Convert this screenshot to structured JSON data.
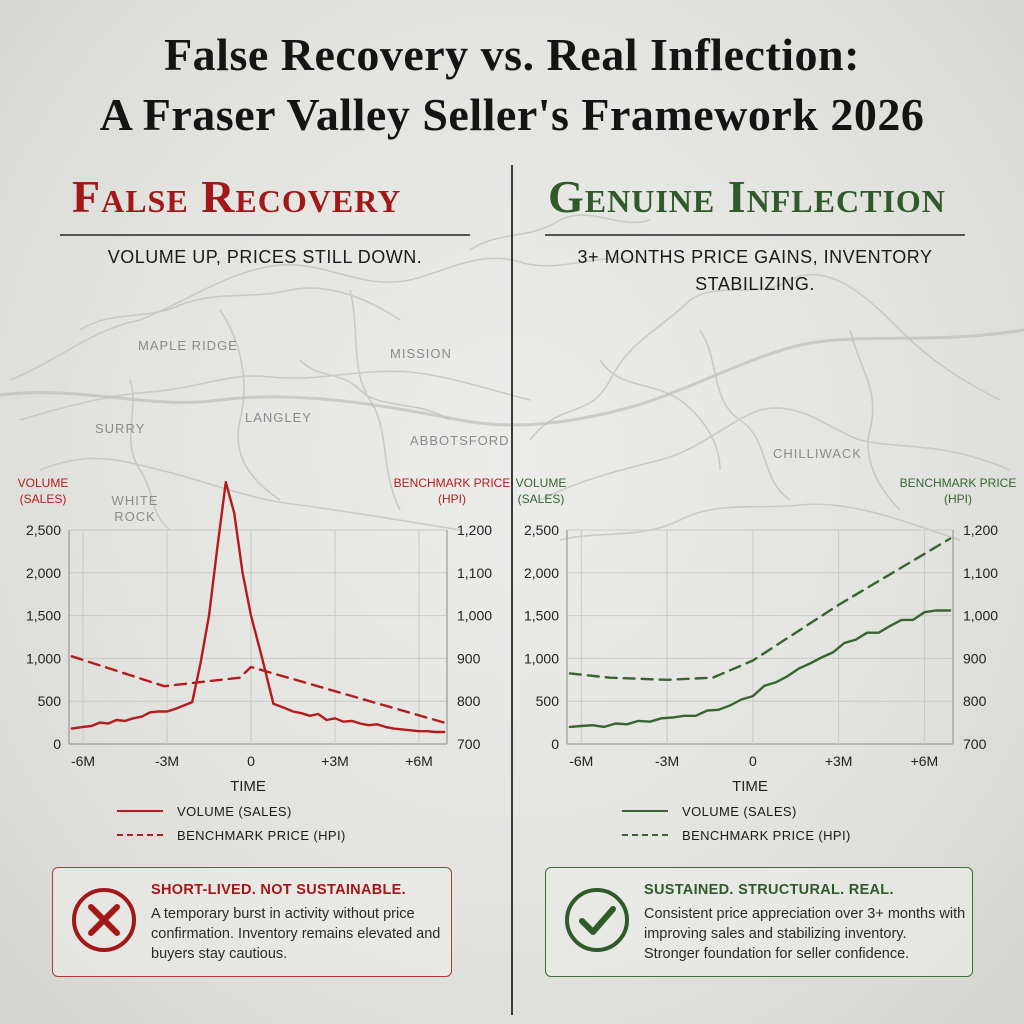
{
  "title": {
    "line1": "False Recovery vs. Real Inflection:",
    "line2": "A Fraser Valley Seller's Framework 2026"
  },
  "colors": {
    "red": "#b41c1c",
    "green": "#36652f",
    "grid": "#c9c9c6",
    "text": "#1a1a1a"
  },
  "map_labels": {
    "maple_ridge": "MAPLE RIDGE",
    "mission": "MISSION",
    "surry": "SURRY",
    "langley": "LANGLEY",
    "abbotsford": "ABBOTSFORD",
    "white_rock": "WHITE ROCK",
    "chilliwack": "CHILLIWACK"
  },
  "left": {
    "heading": "False Recovery",
    "subtitle": "VOLUME UP, PRICES STILL DOWN.",
    "legend": {
      "volume": "VOLUME (SALES)",
      "price": "BENCHMARK PRICE (HPI)"
    },
    "verdict": {
      "head": "SHORT-LIVED. NOT SUSTAINABLE.",
      "body": "A temporary burst in activity without price confirmation. Inventory remains elevated and buyers stay cautious.",
      "icon": "x-circle-icon"
    }
  },
  "right": {
    "heading": "Genuine Inflection",
    "subtitle": "3+ MONTHS PRICE GAINS, INVENTORY STABILIZING.",
    "legend": {
      "volume": "VOLUME (SALES)",
      "price": "BENCHMARK PRICE (HPI)"
    },
    "verdict": {
      "head": "SUSTAINED. STRUCTURAL. REAL.",
      "body": "Consistent price appreciation over 3+ months with improving sales and stabilizing inventory. Stronger foundation for seller confidence.",
      "icon": "check-circle-icon"
    }
  },
  "chart_data": [
    {
      "type": "line",
      "title": "False Recovery",
      "xlabel": "TIME",
      "ylabel": "VOLUME (SALES)",
      "ylabel_right": "BENCHMARK PRICE (HPI)",
      "x_ticks": [
        "-6M",
        "-3M",
        "0",
        "+3M",
        "+6M"
      ],
      "xlim": [
        -6.5,
        7
      ],
      "ylim": [
        0,
        2500
      ],
      "y_ticks": [
        0,
        500,
        1000,
        1500,
        2000,
        2500
      ],
      "ylim_right": [
        700,
        1200
      ],
      "y_ticks_right": [
        700,
        800,
        900,
        1000,
        1100,
        1200
      ],
      "grid": true,
      "color": "#b41c1c",
      "series": [
        {
          "name": "VOLUME (SALES)",
          "axis": "left",
          "style": "solid",
          "x": [
            -6.4,
            -6,
            -5.7,
            -5.4,
            -5.1,
            -4.8,
            -4.5,
            -4.2,
            -3.9,
            -3.6,
            -3.3,
            -3,
            -2.7,
            -2.4,
            -2.1,
            -1.8,
            -1.5,
            -1.2,
            -0.9,
            -0.6,
            -0.3,
            0,
            0.4,
            0.8,
            1.2,
            1.5,
            1.8,
            2.1,
            2.4,
            2.7,
            3,
            3.3,
            3.6,
            3.9,
            4.2,
            4.5,
            4.8,
            5.1,
            5.4,
            5.7,
            6,
            6.3,
            6.6,
            6.9
          ],
          "values": [
            180,
            200,
            210,
            250,
            240,
            280,
            270,
            300,
            320,
            370,
            380,
            380,
            410,
            450,
            490,
            950,
            1500,
            2300,
            3060,
            2700,
            2000,
            1500,
            1000,
            470,
            420,
            380,
            360,
            330,
            350,
            280,
            300,
            260,
            270,
            240,
            220,
            230,
            200,
            180,
            170,
            160,
            150,
            150,
            140,
            140
          ]
        },
        {
          "name": "BENCHMARK PRICE (HPI)",
          "axis": "right",
          "style": "dashed",
          "x": [
            -6.4,
            -3.1,
            -0.4,
            0,
            6.9
          ],
          "values": [
            905,
            835,
            855,
            880,
            750
          ]
        }
      ]
    },
    {
      "type": "line",
      "title": "Genuine Inflection",
      "xlabel": "TIME",
      "ylabel": "VOLUME (SALES)",
      "ylabel_right": "BENCHMARK PRICE (HPI)",
      "x_ticks": [
        "-6M",
        "-3M",
        "0",
        "+3M",
        "+6M"
      ],
      "xlim": [
        -6.5,
        7
      ],
      "ylim": [
        0,
        2500
      ],
      "y_ticks": [
        0,
        500,
        1000,
        1500,
        2000,
        2500
      ],
      "ylim_right": [
        700,
        1200
      ],
      "y_ticks_right": [
        700,
        800,
        900,
        1000,
        1100,
        1200
      ],
      "grid": true,
      "color": "#36652f",
      "series": [
        {
          "name": "VOLUME (SALES)",
          "axis": "left",
          "style": "solid",
          "x": [
            -6.4,
            -6,
            -5.6,
            -5.2,
            -4.8,
            -4.4,
            -4,
            -3.6,
            -3.2,
            -2.8,
            -2.4,
            -2,
            -1.6,
            -1.2,
            -0.8,
            -0.4,
            0,
            0.4,
            0.8,
            1.2,
            1.6,
            2,
            2.4,
            2.8,
            3.2,
            3.6,
            4,
            4.4,
            4.8,
            5.2,
            5.6,
            6,
            6.4,
            6.9
          ],
          "values": [
            200,
            210,
            220,
            200,
            240,
            230,
            270,
            260,
            300,
            310,
            330,
            330,
            390,
            400,
            450,
            520,
            560,
            680,
            720,
            790,
            880,
            940,
            1010,
            1070,
            1180,
            1220,
            1300,
            1300,
            1380,
            1450,
            1450,
            1540,
            1560,
            1560
          ]
        },
        {
          "name": "BENCHMARK PRICE (HPI)",
          "axis": "right",
          "style": "dashed",
          "x": [
            -6.4,
            -5,
            -3,
            -1.4,
            0,
            3,
            6.9
          ],
          "values": [
            865,
            855,
            850,
            855,
            895,
            1025,
            1180
          ]
        }
      ]
    }
  ]
}
